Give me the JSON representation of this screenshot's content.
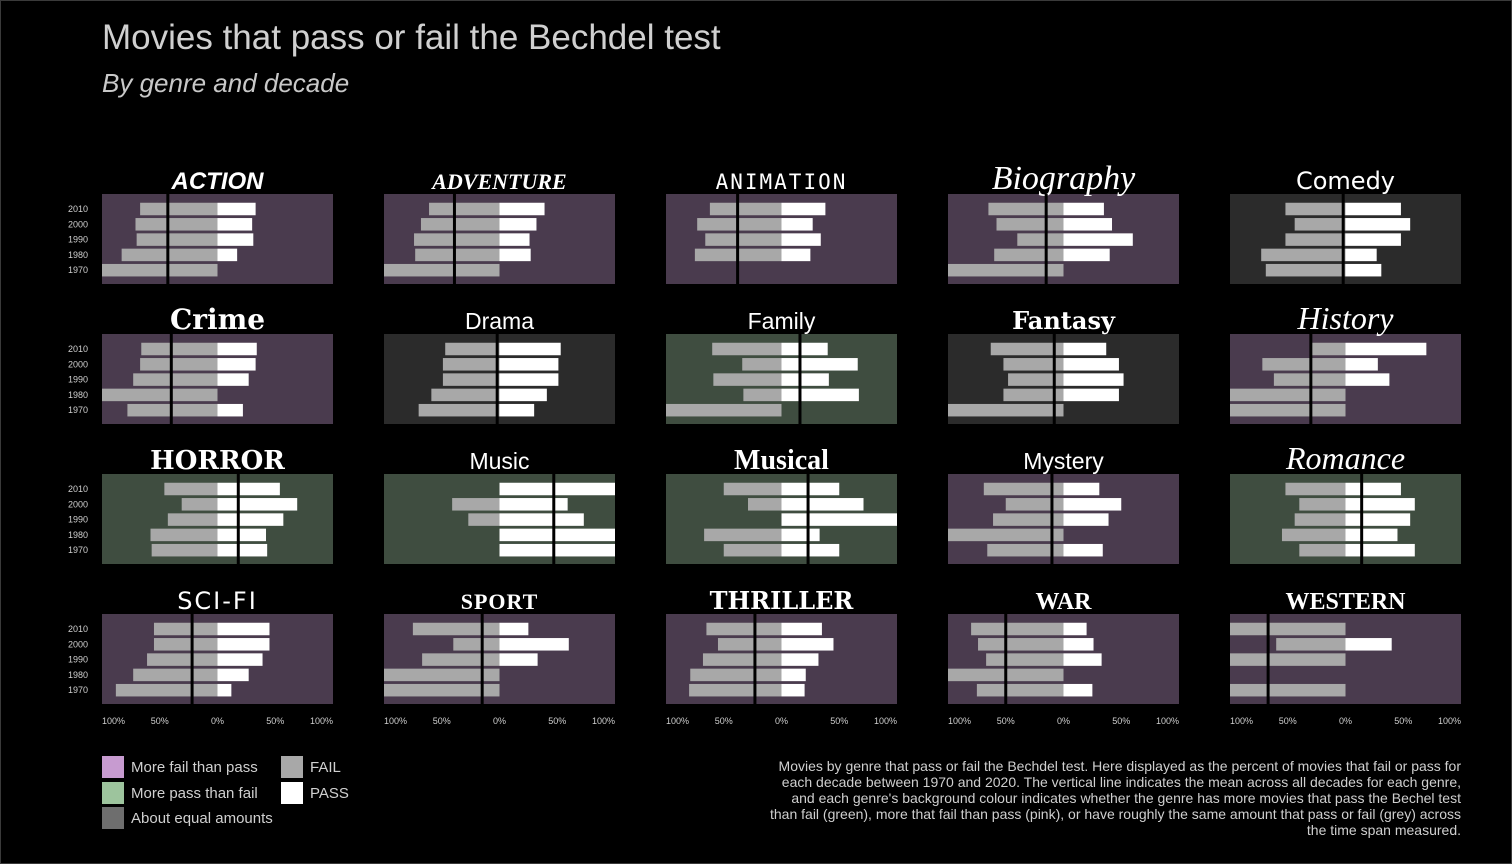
{
  "title": "Movies that pass or fail the Bechdel test",
  "subtitle": "By genre and decade",
  "caption": "Movies by genre that pass or fail the Bechdel test. Here displayed as the percent of movies that fail or pass for each decade between 1970 and 2020. The vertical line indicates the mean across all decades for each genre, and each genre's background colour indicates whether the genre has more movies that pass the Bechel test than fail (green), more that fail than pass (pink), or have roughly the same amount that pass or fail (grey) across the time span measured.",
  "legend": {
    "backgrounds": [
      {
        "label": "More fail than pass",
        "color": "#c79bd0"
      },
      {
        "label": "More pass than fail",
        "color": "#9dc49d"
      },
      {
        "label": "About equal amounts",
        "color": "#6e6e6e"
      }
    ],
    "bars": [
      {
        "label": "FAIL",
        "color": "#a8a8a8"
      },
      {
        "label": "PASS",
        "color": "#ffffff"
      }
    ]
  },
  "colors": {
    "panel_fail": "#4a3b4e",
    "panel_pass": "#3f4d40",
    "panel_equal": "#2b2b2b",
    "bar_fail": "#a8a8a8",
    "bar_pass": "#ffffff",
    "mean_line": "#000000"
  },
  "chart_data": {
    "type": "bar",
    "orientation": "diverging-horizontal",
    "decades": [
      "2010",
      "2000",
      "1990",
      "1980",
      "1970"
    ],
    "axis_ticks": [
      "100%",
      "50%",
      "0%",
      "50%",
      "100%"
    ],
    "xlim": [
      -100,
      100
    ],
    "facets": [
      {
        "genre": "ACTION",
        "background": "fail",
        "mean": -43,
        "fail": [
          67,
          71,
          70,
          83,
          100
        ],
        "pass": [
          33,
          30,
          31,
          17,
          0
        ]
      },
      {
        "genre": "ADVENTURE",
        "background": "fail",
        "mean": -39,
        "fail": [
          61,
          68,
          74,
          73,
          100
        ],
        "pass": [
          39,
          32,
          26,
          27,
          0
        ]
      },
      {
        "genre": "ANIMATION",
        "background": "fail",
        "mean": -38,
        "fail": [
          62,
          73,
          66,
          75,
          0
        ],
        "pass": [
          38,
          27,
          34,
          25,
          0
        ]
      },
      {
        "genre": "Biography",
        "background": "fail",
        "mean": -15,
        "fail": [
          65,
          58,
          40,
          60,
          100
        ],
        "pass": [
          35,
          42,
          60,
          40,
          0
        ]
      },
      {
        "genre": "Comedy",
        "background": "equal",
        "mean": -2,
        "fail": [
          52,
          44,
          52,
          73,
          69
        ],
        "pass": [
          48,
          56,
          48,
          27,
          31
        ]
      },
      {
        "genre": "Crime",
        "background": "fail",
        "mean": -40,
        "fail": [
          66,
          67,
          73,
          100,
          78
        ],
        "pass": [
          34,
          33,
          27,
          0,
          22
        ]
      },
      {
        "genre": "Drama",
        "background": "equal",
        "mean": -2,
        "fail": [
          47,
          49,
          49,
          59,
          70
        ],
        "pass": [
          53,
          51,
          51,
          41,
          30
        ]
      },
      {
        "genre": "Family",
        "background": "pass",
        "mean": 16,
        "fail": [
          60,
          34,
          59,
          33,
          100
        ],
        "pass": [
          40,
          66,
          41,
          67,
          0
        ]
      },
      {
        "genre": "Fantasy",
        "background": "equal",
        "mean": -8,
        "fail": [
          63,
          52,
          48,
          52,
          100
        ],
        "pass": [
          37,
          48,
          52,
          48,
          0
        ]
      },
      {
        "genre": "History",
        "background": "fail",
        "mean": -30,
        "fail": [
          30,
          72,
          62,
          100,
          100
        ],
        "pass": [
          70,
          28,
          38,
          0,
          0
        ]
      },
      {
        "genre": "HORROR",
        "background": "pass",
        "mean": 18,
        "fail": [
          46,
          31,
          43,
          58,
          57
        ],
        "pass": [
          54,
          69,
          57,
          42,
          43
        ]
      },
      {
        "genre": "Music",
        "background": "pass",
        "mean": 47,
        "fail": [
          0,
          41,
          27,
          0,
          0
        ],
        "pass": [
          100,
          59,
          73,
          100,
          100
        ]
      },
      {
        "genre": "Musical",
        "background": "pass",
        "mean": 23,
        "fail": [
          50,
          29,
          0,
          67,
          50
        ],
        "pass": [
          50,
          71,
          100,
          33,
          50
        ]
      },
      {
        "genre": "Mystery",
        "background": "fail",
        "mean": -10,
        "fail": [
          69,
          50,
          61,
          100,
          66
        ],
        "pass": [
          31,
          50,
          39,
          0,
          34
        ]
      },
      {
        "genre": "Romance",
        "background": "pass",
        "mean": 14,
        "fail": [
          52,
          40,
          44,
          55,
          40
        ],
        "pass": [
          48,
          60,
          56,
          45,
          60
        ]
      },
      {
        "genre": "SCI-FI",
        "background": "fail",
        "mean": -22,
        "fail": [
          55,
          55,
          61,
          73,
          88
        ],
        "pass": [
          45,
          45,
          39,
          27,
          12
        ]
      },
      {
        "genre": "SPORT",
        "background": "fail",
        "mean": -15,
        "fail": [
          75,
          40,
          67,
          100,
          100
        ],
        "pass": [
          25,
          60,
          33,
          0,
          0
        ]
      },
      {
        "genre": "THRILLER",
        "background": "fail",
        "mean": -23,
        "fail": [
          65,
          55,
          68,
          79,
          80
        ],
        "pass": [
          35,
          45,
          32,
          21,
          20
        ]
      },
      {
        "genre": "WAR",
        "background": "fail",
        "mean": -50,
        "fail": [
          80,
          74,
          67,
          100,
          75
        ],
        "pass": [
          20,
          26,
          33,
          0,
          25
        ]
      },
      {
        "genre": "WESTERN",
        "background": "fail",
        "mean": -67,
        "fail": [
          100,
          60,
          100,
          0,
          100
        ],
        "pass": [
          0,
          40,
          0,
          0,
          0
        ]
      }
    ]
  }
}
